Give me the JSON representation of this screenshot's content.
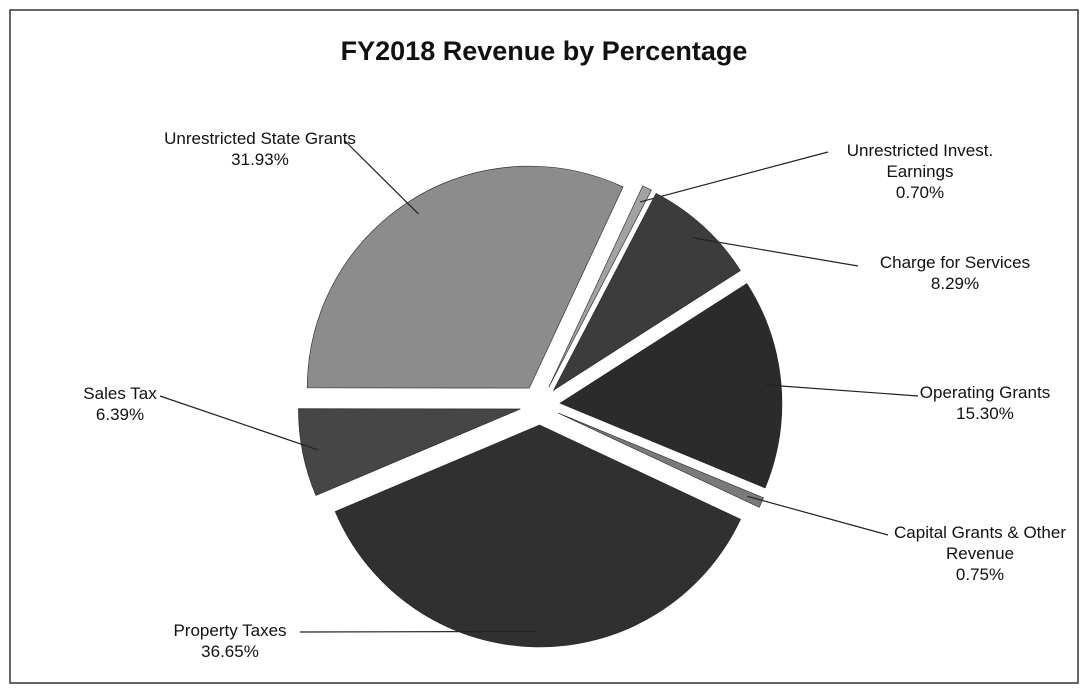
{
  "chart_data": {
    "type": "pie",
    "title": "FY2018 Revenue by Percentage",
    "categories": [
      "Unrestricted Invest. Earnings",
      "Charge for Services",
      "Operating Grants",
      "Capital Grants & Other Revenue",
      "Property Taxes",
      "Sales Tax",
      "Unrestricted State Grants"
    ],
    "values": [
      0.7,
      8.29,
      15.3,
      0.75,
      36.65,
      6.39,
      31.93
    ],
    "value_labels": [
      "0.70%",
      "8.29%",
      "15.30%",
      "0.75%",
      "36.65%",
      "6.39%",
      "31.93%"
    ],
    "colors": [
      "#a3a3a3",
      "#3c3c3c",
      "#2b2b2b",
      "#7a7a7a",
      "#303030",
      "#464646",
      "#8c8c8c"
    ]
  }
}
